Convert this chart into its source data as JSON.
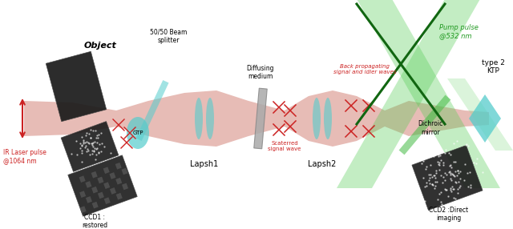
{
  "bg_color": "#ffffff",
  "beam_color": "#d4857a",
  "beam_alpha": 0.55,
  "green_beam_color": "#55cc55",
  "green_beam_alpha": 0.35,
  "cyan_color": "#55cccc",
  "red_color": "#cc2222",
  "green_color": "#229922",
  "dark_color": "#111111",
  "labels": {
    "object": "Object",
    "ir_laser": "IR Laser pulse\n@1064 nm",
    "beam_splitter": "50/50 Beam\nsplitter",
    "gtp": "GTP",
    "lapsh1": "Lapsh1",
    "diffusing": "Diffusing\nmedium",
    "lapsh2": "Lapsh2",
    "scattered": "Scaterred\nsignal wave",
    "back_prop": "Back propagating\nsignal and idler waves",
    "pump": "Pump pulse\n@532 nm",
    "dichroic": "Dichroic\nmirror",
    "type2": "type 2\nKTP",
    "ccd1": "CCD1 :\nrestored\nimage",
    "ccd2": "CCD2 :Direct\nimaging"
  },
  "fig_width": 6.4,
  "fig_height": 2.86,
  "dpi": 100
}
